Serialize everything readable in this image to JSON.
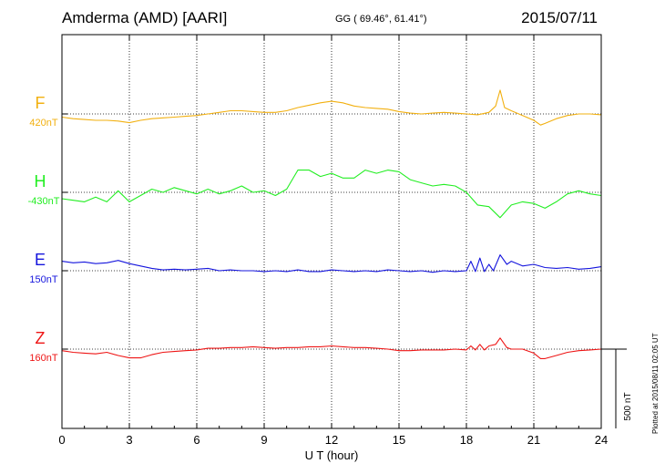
{
  "header": {
    "station": "Amderma (AMD)  [AARI]",
    "coordinates": "GG ( 69.46°,  61.41°)",
    "date": "2015/07/11"
  },
  "footer_note": "Plotted at 2015/08/11 02:05 UT",
  "scale_bar_label": "500 nT",
  "chart_data": {
    "type": "line",
    "xlabel": "U T (hour)",
    "xlim": [
      0,
      24
    ],
    "xticks": [
      "0",
      "3",
      "6",
      "9",
      "12",
      "15",
      "18",
      "21",
      "24"
    ],
    "grid": "dotted",
    "scale_bar_nT": 500,
    "series": [
      {
        "name": "F",
        "baseline": "420nT",
        "color": "#f2b010",
        "x": [
          0,
          0.5,
          1,
          1.5,
          2,
          2.5,
          3,
          3.5,
          4,
          4.5,
          5,
          5.5,
          6,
          6.5,
          7,
          7.5,
          8,
          8.5,
          9,
          9.5,
          10,
          10.5,
          11,
          11.5,
          12,
          12.5,
          13,
          13.5,
          14,
          14.5,
          15,
          15.5,
          16,
          16.5,
          17,
          17.5,
          18,
          18.5,
          19,
          19.3,
          19.5,
          19.7,
          20,
          20.5,
          21,
          21.3,
          21.5,
          22,
          22.5,
          23,
          23.5,
          24
        ],
        "y": [
          -20,
          -30,
          -35,
          -40,
          -40,
          -45,
          -55,
          -40,
          -30,
          -25,
          -20,
          -15,
          -10,
          0,
          10,
          20,
          20,
          15,
          10,
          10,
          20,
          40,
          55,
          70,
          80,
          70,
          50,
          40,
          35,
          30,
          15,
          5,
          0,
          5,
          10,
          5,
          0,
          -5,
          10,
          50,
          150,
          40,
          20,
          -10,
          -40,
          -70,
          -60,
          -30,
          -10,
          0,
          0,
          -5
        ]
      },
      {
        "name": "H",
        "baseline": "-430nT",
        "color": "#22ee22",
        "x": [
          0,
          0.5,
          1,
          1.5,
          2,
          2.5,
          3,
          3.5,
          4,
          4.5,
          5,
          5.5,
          6,
          6.5,
          7,
          7.5,
          8,
          8.5,
          9,
          9.5,
          10,
          10.5,
          11,
          11.5,
          12,
          12.5,
          13,
          13.5,
          14,
          14.5,
          15,
          15.5,
          16,
          16.5,
          17,
          17.5,
          18,
          18.5,
          19,
          19.5,
          20,
          20.5,
          21,
          21.5,
          22,
          22.5,
          23,
          23.5,
          24
        ],
        "y": [
          -40,
          -50,
          -60,
          -30,
          -60,
          10,
          -60,
          -20,
          20,
          0,
          30,
          10,
          -10,
          20,
          -10,
          10,
          40,
          0,
          10,
          -20,
          20,
          140,
          140,
          100,
          120,
          90,
          90,
          140,
          120,
          140,
          130,
          80,
          60,
          40,
          50,
          40,
          0,
          -80,
          -90,
          -160,
          -80,
          -60,
          -70,
          -100,
          -60,
          -10,
          10,
          -10,
          -20
        ]
      },
      {
        "name": "E",
        "baseline": "150nT",
        "color": "#1515dd",
        "x": [
          0,
          0.5,
          1,
          1.5,
          2,
          2.5,
          3,
          3.5,
          4,
          4.5,
          5,
          5.5,
          6,
          6.5,
          7,
          7.5,
          8,
          8.5,
          9,
          9.5,
          10,
          10.5,
          11,
          11.5,
          12,
          12.5,
          13,
          13.5,
          14,
          14.5,
          15,
          15.5,
          16,
          16.5,
          17,
          17.5,
          18,
          18.2,
          18.4,
          18.6,
          18.8,
          19,
          19.2,
          19.5,
          19.8,
          20,
          20.5,
          21,
          21.5,
          22,
          22.5,
          23,
          23.5,
          24
        ],
        "y": [
          60,
          50,
          55,
          45,
          50,
          65,
          45,
          30,
          15,
          5,
          10,
          5,
          10,
          15,
          0,
          5,
          0,
          0,
          -5,
          0,
          -5,
          5,
          -5,
          -5,
          5,
          0,
          -5,
          0,
          -5,
          5,
          0,
          -5,
          0,
          -10,
          0,
          -5,
          0,
          60,
          -5,
          80,
          -5,
          40,
          0,
          100,
          40,
          60,
          30,
          40,
          20,
          15,
          20,
          10,
          15,
          25
        ]
      },
      {
        "name": "Z",
        "baseline": "160nT",
        "color": "#ee1515",
        "x": [
          0,
          0.5,
          1,
          1.5,
          2,
          2.5,
          3,
          3.5,
          4,
          4.5,
          5,
          5.5,
          6,
          6.5,
          7,
          7.5,
          8,
          8.5,
          9,
          9.5,
          10,
          10.5,
          11,
          11.5,
          12,
          12.5,
          13,
          13.5,
          14,
          14.5,
          15,
          15.5,
          16,
          16.5,
          17,
          17.5,
          18,
          18.2,
          18.4,
          18.6,
          18.8,
          19,
          19.3,
          19.5,
          19.8,
          20,
          20.5,
          21,
          21.3,
          21.5,
          22,
          22.5,
          23,
          23.5,
          24
        ],
        "y": [
          -10,
          -20,
          -25,
          -30,
          -20,
          -40,
          -55,
          -55,
          -35,
          -20,
          -15,
          -10,
          -5,
          5,
          5,
          10,
          10,
          15,
          10,
          5,
          10,
          10,
          15,
          15,
          20,
          15,
          10,
          10,
          5,
          0,
          -10,
          -10,
          -5,
          -5,
          -5,
          0,
          -5,
          20,
          -5,
          30,
          -5,
          20,
          30,
          70,
          10,
          0,
          0,
          -25,
          -60,
          -60,
          -40,
          -20,
          -10,
          -5,
          0
        ]
      }
    ]
  }
}
